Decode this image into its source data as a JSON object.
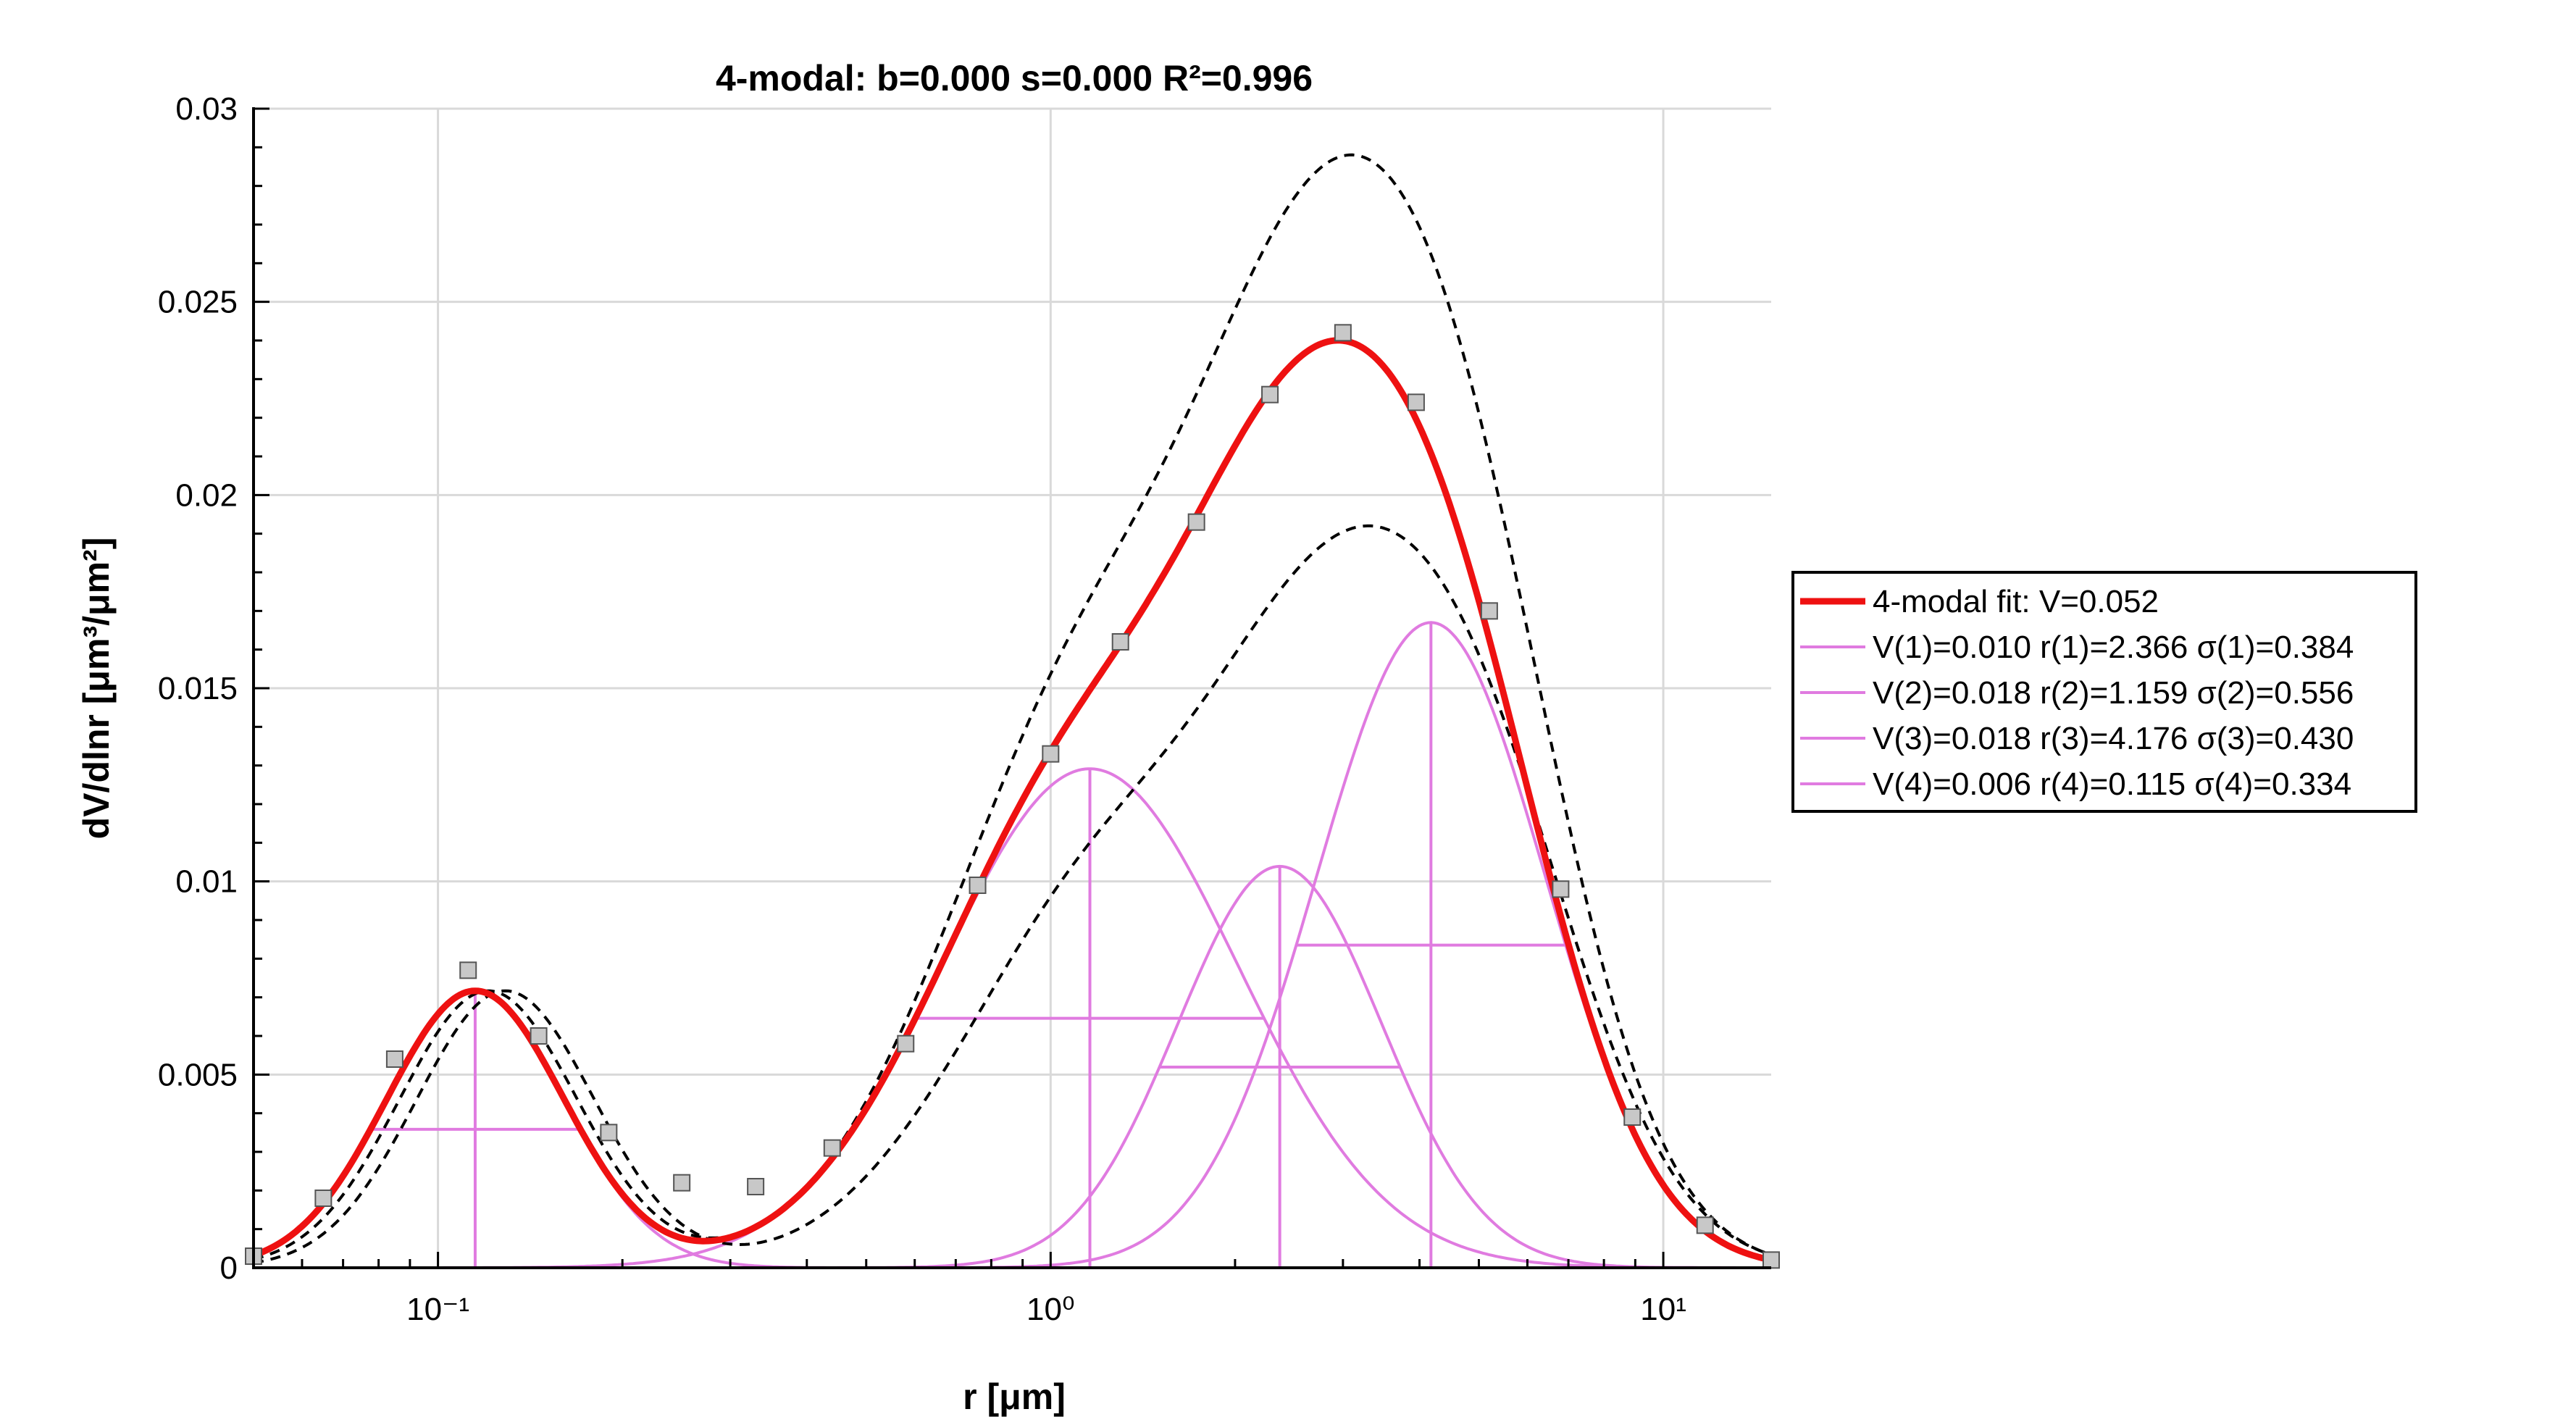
{
  "chart_data": {
    "type": "line",
    "title": "4-modal: b=0.000 s=0.000 R²=0.996",
    "xlabel": "r [μm]",
    "ylabel": "dV/dlnr [μm³/μm²]",
    "xscale": "log",
    "xlim": [
      0.05,
      15
    ],
    "ylim": [
      0,
      0.03
    ],
    "grid": true,
    "legend_placement": "right",
    "x_tick_labels": [
      "10⁻¹",
      "10⁰",
      "10¹"
    ],
    "y_tick_labels": [
      "0",
      "0.005",
      "0.01",
      "0.015",
      "0.02",
      "0.025",
      "0.03"
    ],
    "modes": [
      {
        "V": 0.01,
        "r": 2.366,
        "sigma": 0.384,
        "color": "#e07be0"
      },
      {
        "V": 0.018,
        "r": 1.159,
        "sigma": 0.556,
        "color": "#e07be0"
      },
      {
        "V": 0.018,
        "r": 4.176,
        "sigma": 0.43,
        "color": "#e07be0"
      },
      {
        "V": 0.006,
        "r": 0.115,
        "sigma": 0.334,
        "color": "#e07be0"
      }
    ],
    "fit_color": "#ee1111",
    "envelope_style": "black dashed",
    "measured_points": {
      "x": [
        0.05,
        0.065,
        0.085,
        0.112,
        0.146,
        0.19,
        0.25,
        0.33,
        0.44,
        0.58,
        0.76,
        1.0,
        1.3,
        1.73,
        2.28,
        3.0,
        3.95,
        5.2,
        6.8,
        8.9,
        11.7,
        15.0
      ],
      "y": [
        0.0003,
        0.0018,
        0.0054,
        0.0077,
        0.006,
        0.0035,
        0.0022,
        0.0021,
        0.0031,
        0.0058,
        0.0099,
        0.0133,
        0.0162,
        0.0193,
        0.0226,
        0.0242,
        0.0224,
        0.017,
        0.0098,
        0.0039,
        0.0011,
        0.0002
      ]
    },
    "legend": [
      "4-modal fit: V=0.052",
      "V(1)=0.010 r(1)=2.366 σ(1)=0.384",
      "V(2)=0.018 r(2)=1.159 σ(2)=0.556",
      "V(3)=0.018 r(3)=4.176 σ(3)=0.430",
      "V(4)=0.006 r(4)=0.115 σ(4)=0.334"
    ]
  }
}
